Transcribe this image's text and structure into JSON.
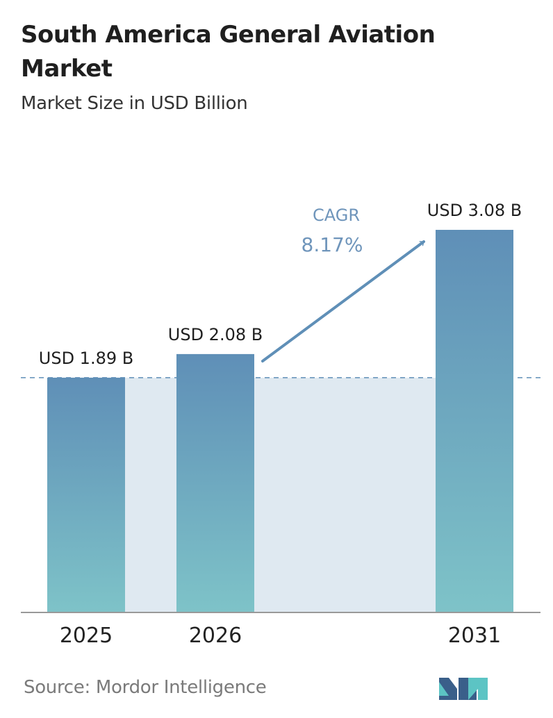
{
  "chart_data": {
    "type": "bar",
    "title": "South America General Aviation Market",
    "subtitle": "Market Size in USD Billion",
    "categories": [
      "2025",
      "2026",
      "2031"
    ],
    "values": [
      1.89,
      2.08,
      3.08
    ],
    "value_labels": [
      "USD 1.89 B",
      "USD 2.08 B",
      "USD 3.08 B"
    ],
    "reference_line": 1.89,
    "annotation": {
      "label": "CAGR",
      "value": "8.17%"
    },
    "ylim": [
      0,
      3.08
    ],
    "grid": false,
    "legend": "none"
  },
  "footer": {
    "source": "Source: Mordor Intelligence"
  },
  "colors": {
    "bar_top": "#5f8fb7",
    "bar_bottom": "#7ec3c8",
    "band": "#dfe9f1",
    "arrow": "#5f8fb7",
    "cagr_text": "#6f95bb",
    "axis": "#999999"
  },
  "logo": {
    "icon": "mordor-intelligence-logo-icon"
  }
}
